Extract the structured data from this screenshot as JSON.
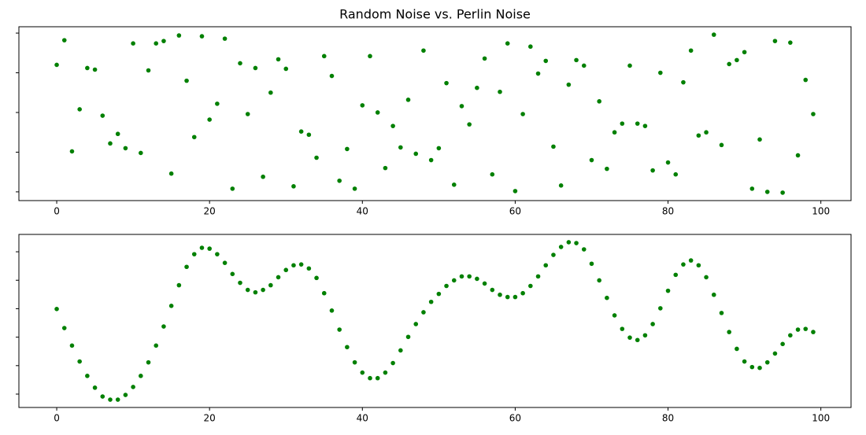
{
  "chart_data": [
    {
      "type": "scatter",
      "title": "Random Noise vs. Perlin Noise",
      "x": [
        0,
        1,
        2,
        3,
        4,
        5,
        6,
        7,
        8,
        9,
        10,
        11,
        12,
        13,
        14,
        15,
        16,
        17,
        18,
        19,
        20,
        21,
        22,
        23,
        24,
        25,
        26,
        27,
        28,
        29,
        30,
        31,
        32,
        33,
        34,
        35,
        36,
        37,
        38,
        39,
        40,
        41,
        42,
        43,
        44,
        45,
        46,
        47,
        48,
        49,
        50,
        51,
        52,
        53,
        54,
        55,
        56,
        57,
        58,
        59,
        60,
        61,
        62,
        63,
        64,
        65,
        66,
        67,
        68,
        69,
        70,
        71,
        72,
        73,
        74,
        75,
        76,
        77,
        78,
        79,
        80,
        81,
        82,
        83,
        84,
        85,
        86,
        87,
        88,
        89,
        90,
        91,
        92,
        93,
        94,
        95,
        96,
        97,
        98,
        99
      ],
      "series": [
        {
          "color": "#008000",
          "values": [
            0.8,
            0.955,
            0.255,
            0.52,
            0.78,
            0.77,
            0.48,
            0.305,
            0.365,
            0.275,
            0.935,
            0.245,
            0.765,
            0.935,
            0.95,
            0.115,
            0.985,
            0.7,
            0.345,
            0.98,
            0.455,
            0.555,
            0.965,
            0.02,
            0.81,
            0.49,
            0.78,
            0.095,
            0.625,
            0.835,
            0.775,
            0.035,
            0.38,
            0.36,
            0.215,
            0.855,
            0.73,
            0.07,
            0.27,
            0.02,
            0.545,
            0.855,
            0.5,
            0.15,
            0.415,
            0.28,
            0.58,
            0.24,
            0.89,
            0.2,
            0.275,
            0.685,
            0.045,
            0.54,
            0.425,
            0.655,
            0.84,
            0.11,
            0.63,
            0.935,
            0.005,
            0.49,
            0.915,
            0.745,
            0.825,
            0.285,
            0.04,
            0.675,
            0.83,
            0.795,
            0.2,
            0.57,
            0.145,
            0.375,
            0.43,
            0.795,
            0.43,
            0.415,
            0.135,
            0.75,
            0.185,
            0.11,
            0.69,
            0.89,
            0.355,
            0.375,
            0.99,
            0.295,
            0.805,
            0.83,
            0.88,
            0.02,
            0.33,
            0.0,
            0.95,
            -0.005,
            0.94,
            0.23,
            0.705,
            0.49
          ]
        }
      ],
      "xlim": [
        -4.95,
        103.95
      ],
      "xticks": [
        0,
        20,
        40,
        60,
        80,
        100
      ],
      "ylim": [
        -0.055,
        1.04
      ],
      "yticks": [
        0,
        0.25,
        0.5,
        0.75,
        1
      ]
    },
    {
      "type": "scatter",
      "x": [
        0,
        1,
        2,
        3,
        4,
        5,
        6,
        7,
        8,
        9,
        10,
        11,
        12,
        13,
        14,
        15,
        16,
        17,
        18,
        19,
        20,
        21,
        22,
        23,
        24,
        25,
        26,
        27,
        28,
        29,
        30,
        31,
        32,
        33,
        34,
        35,
        36,
        37,
        38,
        39,
        40,
        41,
        42,
        43,
        44,
        45,
        46,
        47,
        48,
        49,
        50,
        51,
        52,
        53,
        54,
        55,
        56,
        57,
        58,
        59,
        60,
        61,
        62,
        63,
        64,
        65,
        66,
        67,
        68,
        69,
        70,
        71,
        72,
        73,
        74,
        75,
        76,
        77,
        78,
        79,
        80,
        81,
        82,
        83,
        84,
        85,
        86,
        87,
        88,
        89,
        90,
        91,
        92,
        93,
        94,
        95,
        96,
        97,
        98,
        99
      ],
      "series": [
        {
          "color": "#008000",
          "values": [
            0.598,
            0.464,
            0.341,
            0.229,
            0.128,
            0.045,
            -0.017,
            -0.039,
            -0.039,
            -0.006,
            0.05,
            0.128,
            0.223,
            0.341,
            0.475,
            0.62,
            0.765,
            0.894,
            0.983,
            1.028,
            1.022,
            0.983,
            0.922,
            0.844,
            0.782,
            0.732,
            0.715,
            0.732,
            0.765,
            0.821,
            0.872,
            0.905,
            0.911,
            0.883,
            0.816,
            0.709,
            0.587,
            0.453,
            0.33,
            0.223,
            0.151,
            0.112,
            0.112,
            0.151,
            0.218,
            0.307,
            0.402,
            0.492,
            0.575,
            0.648,
            0.704,
            0.76,
            0.799,
            0.827,
            0.827,
            0.81,
            0.777,
            0.732,
            0.698,
            0.682,
            0.682,
            0.709,
            0.76,
            0.827,
            0.905,
            0.978,
            1.034,
            1.067,
            1.061,
            1.017,
            0.916,
            0.799,
            0.676,
            0.553,
            0.458,
            0.397,
            0.38,
            0.413,
            0.492,
            0.603,
            0.726,
            0.838,
            0.911,
            0.939,
            0.905,
            0.821,
            0.698,
            0.57,
            0.436,
            0.318,
            0.229,
            0.19,
            0.184,
            0.223,
            0.285,
            0.352,
            0.413,
            0.453,
            0.458,
            0.436
          ]
        }
      ],
      "xlim": [
        -4.95,
        103.95
      ],
      "xticks": [
        0,
        20,
        40,
        60,
        80,
        100
      ],
      "ylim": [
        -0.094,
        1.122
      ],
      "yticks": [
        0,
        0.2,
        0.4,
        0.6,
        0.8,
        1
      ]
    }
  ]
}
